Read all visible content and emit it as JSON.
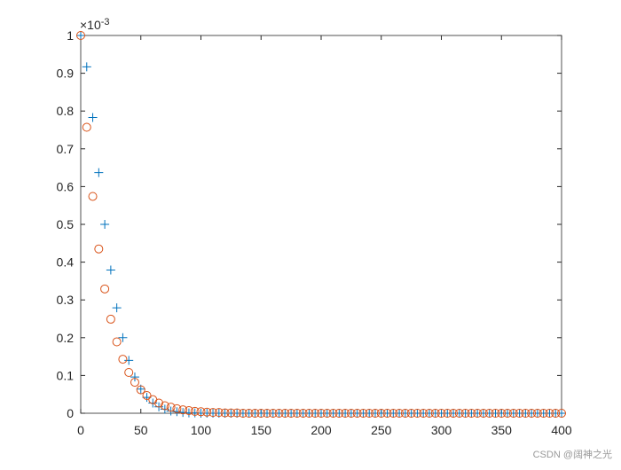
{
  "chart_data": {
    "type": "scatter",
    "x": [
      0,
      5,
      10,
      15,
      20,
      25,
      30,
      35,
      40,
      45,
      50,
      55,
      60,
      65,
      70,
      75,
      80,
      85,
      90,
      95,
      100,
      105,
      110,
      115,
      120,
      125,
      130,
      135,
      140,
      145,
      150,
      155,
      160,
      165,
      170,
      175,
      180,
      185,
      190,
      195,
      200,
      205,
      210,
      215,
      220,
      225,
      230,
      235,
      240,
      245,
      250,
      255,
      260,
      265,
      270,
      275,
      280,
      285,
      290,
      295,
      300,
      305,
      310,
      315,
      320,
      325,
      330,
      335,
      340,
      345,
      350,
      355,
      360,
      365,
      370,
      375,
      380,
      385,
      390,
      395,
      400
    ],
    "series": [
      {
        "color": "#0072BD",
        "marker": "plus",
        "values": [
          1,
          0.917,
          0.783,
          0.637,
          0.5,
          0.379,
          0.279,
          0.2,
          0.14,
          0.096,
          0.064,
          0.042,
          0.027,
          0.017,
          0.011,
          0.006,
          0.004,
          0.002,
          0.001,
          0.001,
          0,
          0,
          0,
          0,
          0,
          0,
          0,
          0,
          0,
          0,
          0,
          0,
          0,
          0,
          0,
          0,
          0,
          0,
          0,
          0,
          0,
          0,
          0,
          0,
          0,
          0,
          0,
          0,
          0,
          0,
          0,
          0,
          0,
          0,
          0,
          0,
          0,
          0,
          0,
          0,
          0,
          0,
          0,
          0,
          0,
          0,
          0,
          0,
          0,
          0,
          0,
          0,
          0,
          0,
          0,
          0,
          0,
          0,
          0,
          0,
          0
        ]
      },
      {
        "color": "#D95319",
        "marker": "circle",
        "values": [
          1,
          0.757,
          0.574,
          0.435,
          0.329,
          0.249,
          0.189,
          0.143,
          0.108,
          0.082,
          0.062,
          0.047,
          0.036,
          0.027,
          0.02,
          0.016,
          0.012,
          0.009,
          0.007,
          0.005,
          0.004,
          0.003,
          0.002,
          0.002,
          0.001,
          0.001,
          0.001,
          0,
          0,
          0,
          0,
          0,
          0,
          0,
          0,
          0,
          0,
          0,
          0,
          0,
          0,
          0,
          0,
          0,
          0,
          0,
          0,
          0,
          0,
          0,
          0,
          0,
          0,
          0,
          0,
          0,
          0,
          0,
          0,
          0,
          0,
          0,
          0,
          0,
          0,
          0,
          0,
          0,
          0,
          0,
          0,
          0,
          0,
          0,
          0,
          0,
          0,
          0,
          0,
          0,
          0
        ]
      }
    ],
    "xlim": [
      0,
      400
    ],
    "xticks": [
      0,
      50,
      100,
      150,
      200,
      250,
      300,
      350,
      400
    ],
    "ylim": [
      0,
      1
    ],
    "yticks": [
      0,
      0.1,
      0.2,
      0.3,
      0.4,
      0.5,
      0.6,
      0.7,
      0.8,
      0.9,
      1
    ],
    "y_multiplier": "×10",
    "y_exponent": "-3"
  },
  "watermark": "CSDN @阔神之光"
}
